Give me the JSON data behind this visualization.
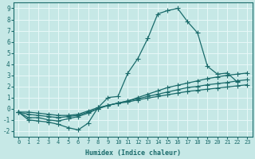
{
  "xlabel": "Humidex (Indice chaleur)",
  "xlim": [
    -0.5,
    23.5
  ],
  "ylim": [
    -2.5,
    9.5
  ],
  "xticks": [
    0,
    1,
    2,
    3,
    4,
    5,
    6,
    7,
    8,
    9,
    10,
    11,
    12,
    13,
    14,
    15,
    16,
    17,
    18,
    19,
    20,
    21,
    22,
    23
  ],
  "yticks": [
    -2,
    -1,
    0,
    1,
    2,
    3,
    4,
    5,
    6,
    7,
    8,
    9
  ],
  "bg_color": "#c6e8e6",
  "line_color": "#1a6b6b",
  "grid_color": "#e8f8f8",
  "lines": [
    {
      "x": [
        0,
        1,
        2,
        3,
        4,
        5,
        6,
        7,
        8,
        9,
        10,
        11,
        12,
        13,
        14,
        15,
        16,
        17,
        18,
        19,
        20,
        21,
        22,
        23
      ],
      "y": [
        -0.3,
        -1.0,
        -1.1,
        -1.2,
        -1.4,
        -1.7,
        -1.9,
        -1.3,
        0.1,
        1.0,
        1.1,
        3.2,
        4.5,
        6.3,
        8.5,
        8.8,
        9.0,
        7.8,
        6.8,
        3.8,
        3.1,
        3.2,
        2.4,
        null
      ]
    },
    {
      "x": [
        0,
        1,
        2,
        3,
        4,
        5,
        6,
        7,
        8,
        9,
        10,
        11,
        12,
        13,
        14,
        15,
        16,
        17,
        18,
        19,
        20,
        21,
        22,
        23
      ],
      "y": [
        -0.3,
        -0.8,
        -0.8,
        -1.0,
        -1.1,
        -0.9,
        -0.7,
        -0.4,
        0.0,
        0.3,
        0.5,
        0.7,
        1.0,
        1.3,
        1.6,
        1.9,
        2.1,
        2.3,
        2.5,
        2.7,
        2.85,
        3.0,
        3.1,
        3.2
      ]
    },
    {
      "x": [
        0,
        1,
        2,
        3,
        4,
        5,
        6,
        7,
        8,
        9,
        10,
        11,
        12,
        13,
        14,
        15,
        16,
        17,
        18,
        19,
        20,
        21,
        22,
        23
      ],
      "y": [
        -0.3,
        -0.5,
        -0.6,
        -0.7,
        -0.8,
        -0.7,
        -0.6,
        -0.3,
        0.0,
        0.3,
        0.5,
        0.7,
        0.9,
        1.1,
        1.3,
        1.5,
        1.7,
        1.9,
        2.0,
        2.15,
        2.25,
        2.35,
        2.5,
        2.6
      ]
    },
    {
      "x": [
        0,
        1,
        2,
        3,
        4,
        5,
        6,
        7,
        8,
        9,
        10,
        11,
        12,
        13,
        14,
        15,
        16,
        17,
        18,
        19,
        20,
        21,
        22,
        23
      ],
      "y": [
        -0.3,
        -0.3,
        -0.4,
        -0.5,
        -0.6,
        -0.6,
        -0.5,
        -0.2,
        0.1,
        0.3,
        0.5,
        0.6,
        0.8,
        0.95,
        1.1,
        1.25,
        1.4,
        1.55,
        1.65,
        1.75,
        1.85,
        1.95,
        2.05,
        2.15
      ]
    }
  ]
}
